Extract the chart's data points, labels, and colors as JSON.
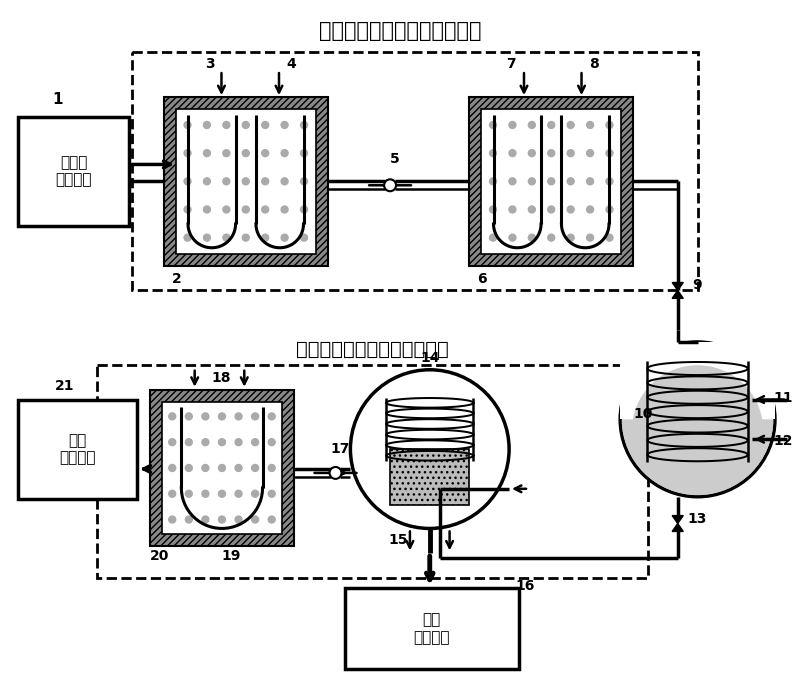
{
  "title_top": "热化学变压解吸复合储能装置",
  "title_bottom": "热化学变温吸附冷热联供装置",
  "box1_label": "低品位\n余热装置",
  "box_cold_label": "外界\n冷用户端",
  "box_hot_label": "外界\n热用户端",
  "bg_color": "#ffffff",
  "lw_thick": 2.5,
  "lw_med": 1.8,
  "lw_thin": 1.2
}
